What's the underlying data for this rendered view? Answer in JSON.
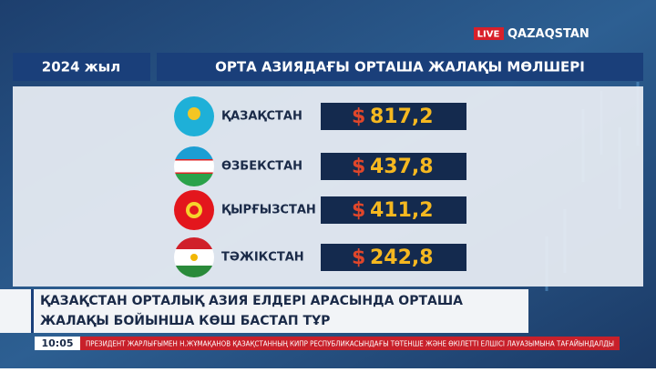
{
  "logo": {
    "live": "LIVE",
    "channel": "QAZAQSTAN"
  },
  "header": {
    "year": "2024 жыл",
    "title": "ОРТА АЗИЯДАҒЫ ОРТАША ЖАЛАҚЫ МӨЛШЕРІ"
  },
  "rows": [
    {
      "country": "ҚАЗАҚСТАН",
      "currency": "$",
      "value": "817,2"
    },
    {
      "country": "ӨЗБЕКСТАН",
      "currency": "$",
      "value": "437,8"
    },
    {
      "country": "ҚЫРҒЫЗСТАН",
      "currency": "$",
      "value": "411,2"
    },
    {
      "country": "ТӘЖІКСТАН",
      "currency": "$",
      "value": "242,8"
    }
  ],
  "headline": [
    "ҚАЗАҚСТАН ОРТАЛЫҚ АЗИЯ ЕЛДЕРІ АРАСЫНДА ОРТАША",
    "ЖАЛАҚЫ БОЙЫНША КӨШ БАСТАП ТҰР"
  ],
  "ticker": {
    "time": "10:05",
    "text": "ПРЕЗИДЕНТ ЖАРЛЫҒЫМЕН Н.ЖҰМАҚАНОВ ҚАЗАҚСТАННЫҢ КИПР РЕСПУБЛИКАСЫНДАҒЫ ТӨТЕНШЕ ЖӘНЕ ӨКІЛЕТТІ ЕЛШІСІ ЛАУАЗЫМЫНА ТАҒАЙЫНДАЛДЫ"
  }
}
